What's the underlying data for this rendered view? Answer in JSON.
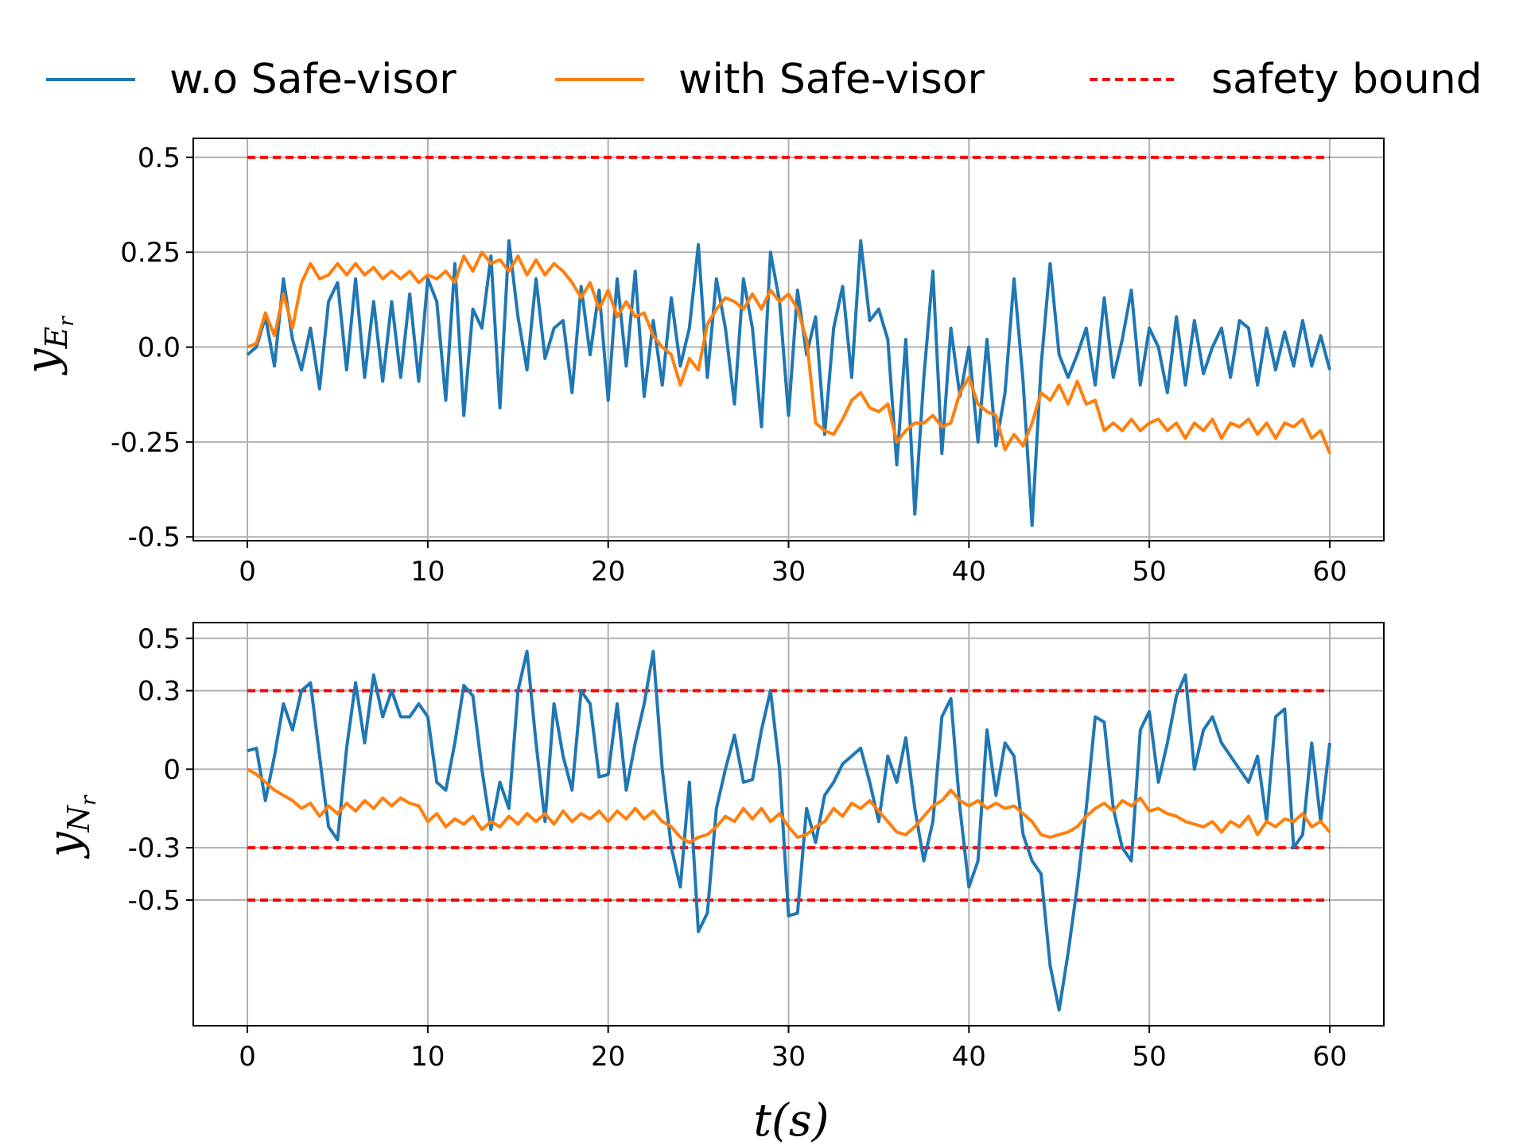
{
  "colors": {
    "series_without": "#1f77b4",
    "series_with": "#ff7f0e",
    "safety_bound": "#ff0000",
    "grid": "#b0b0b0"
  },
  "legend": {
    "items": [
      {
        "label": "w.o Safe-visor",
        "style": "solid",
        "color": "#1f77b4"
      },
      {
        "label": "with Safe-visor",
        "style": "solid",
        "color": "#ff7f0e"
      },
      {
        "label": "safety bound",
        "style": "dashed",
        "color": "#ff0000"
      }
    ],
    "placement": "top-center"
  },
  "chart_data": [
    {
      "type": "line",
      "id": "top",
      "ylabel_main": "y",
      "ylabel_sub": "E",
      "ylabel_subsub": "r",
      "xlim": [
        -3,
        63
      ],
      "ylim": [
        -0.51,
        0.55
      ],
      "xticks": [
        0,
        10,
        20,
        30,
        40,
        50,
        60
      ],
      "xtick_labels": [
        "0",
        "10",
        "20",
        "30",
        "40",
        "50",
        "60"
      ],
      "yticks": [
        0.5,
        0.25,
        0.0,
        -0.25,
        -0.5
      ],
      "ytick_labels": [
        "0.5",
        "0.25",
        "0.0",
        "-0.25",
        "-0.5"
      ],
      "grid": true,
      "bounds": [
        0.5
      ],
      "series": [
        {
          "name": "w.o Safe-visor",
          "x": [
            0,
            0.5,
            1,
            1.5,
            2,
            2.5,
            3,
            3.5,
            4,
            4.5,
            5,
            5.5,
            6,
            6.5,
            7,
            7.5,
            8,
            8.5,
            9,
            9.5,
            10,
            10.5,
            11,
            11.5,
            12,
            12.5,
            13,
            13.5,
            14,
            14.5,
            15,
            15.5,
            16,
            16.5,
            17,
            17.5,
            18,
            18.5,
            19,
            19.5,
            20,
            20.5,
            21,
            21.5,
            22,
            22.5,
            23,
            23.5,
            24,
            24.5,
            25,
            25.5,
            26,
            26.5,
            27,
            27.5,
            28,
            28.5,
            29,
            29.5,
            30,
            30.5,
            31,
            31.5,
            32,
            32.5,
            33,
            33.5,
            34,
            34.5,
            35,
            35.5,
            36,
            36.5,
            37,
            37.5,
            38,
            38.5,
            39,
            39.5,
            40,
            40.5,
            41,
            41.5,
            42,
            42.5,
            43,
            43.5,
            44,
            44.5,
            45,
            45.5,
            46,
            46.5,
            47,
            47.5,
            48,
            48.5,
            49,
            49.5,
            50,
            50.5,
            51,
            51.5,
            52,
            52.5,
            53,
            53.5,
            54,
            54.5,
            55,
            55.5,
            56,
            56.5,
            57,
            57.5,
            58,
            58.5,
            59,
            59.5,
            60
          ],
          "values": [
            -0.02,
            0.0,
            0.08,
            -0.05,
            0.18,
            0.02,
            -0.06,
            0.05,
            -0.11,
            0.12,
            0.17,
            -0.06,
            0.18,
            -0.08,
            0.12,
            -0.09,
            0.12,
            -0.08,
            0.14,
            -0.09,
            0.18,
            0.12,
            -0.14,
            0.22,
            -0.18,
            0.1,
            0.05,
            0.24,
            -0.16,
            0.28,
            0.08,
            -0.06,
            0.18,
            -0.03,
            0.05,
            0.07,
            -0.12,
            0.16,
            -0.02,
            0.15,
            -0.14,
            0.18,
            -0.05,
            0.2,
            -0.13,
            0.07,
            -0.1,
            0.13,
            -0.05,
            0.05,
            0.27,
            -0.08,
            0.18,
            0.05,
            -0.15,
            0.18,
            0.05,
            -0.21,
            0.25,
            0.12,
            -0.18,
            0.15,
            -0.02,
            0.08,
            -0.23,
            0.05,
            0.16,
            -0.08,
            0.28,
            0.07,
            0.1,
            0.02,
            -0.31,
            0.02,
            -0.44,
            -0.08,
            0.2,
            -0.28,
            0.05,
            -0.13,
            0.0,
            -0.25,
            0.02,
            -0.26,
            -0.12,
            0.18,
            -0.09,
            -0.47,
            -0.05,
            0.22,
            -0.02,
            -0.08,
            -0.02,
            0.05,
            -0.1,
            0.13,
            -0.08,
            0.02,
            0.15,
            -0.1,
            0.05,
            0.0,
            -0.12,
            0.08,
            -0.1,
            0.07,
            -0.07,
            0.0,
            0.05,
            -0.08,
            0.07,
            0.05,
            -0.1,
            0.05,
            -0.06,
            0.04,
            -0.05,
            0.07,
            -0.05,
            0.03,
            -0.06
          ],
          "color": "#1f77b4"
        },
        {
          "name": "with Safe-visor",
          "x": [
            0,
            0.5,
            1,
            1.5,
            2,
            2.5,
            3,
            3.5,
            4,
            4.5,
            5,
            5.5,
            6,
            6.5,
            7,
            7.5,
            8,
            8.5,
            9,
            9.5,
            10,
            10.5,
            11,
            11.5,
            12,
            12.5,
            13,
            13.5,
            14,
            14.5,
            15,
            15.5,
            16,
            16.5,
            17,
            17.5,
            18,
            18.5,
            19,
            19.5,
            20,
            20.5,
            21,
            21.5,
            22,
            22.5,
            23,
            23.5,
            24,
            24.5,
            25,
            25.5,
            26,
            26.5,
            27,
            27.5,
            28,
            28.5,
            29,
            29.5,
            30,
            30.5,
            31,
            31.5,
            32,
            32.5,
            33,
            33.5,
            34,
            34.5,
            35,
            35.5,
            36,
            36.5,
            37,
            37.5,
            38,
            38.5,
            39,
            39.5,
            40,
            40.5,
            41,
            41.5,
            42,
            42.5,
            43,
            43.5,
            44,
            44.5,
            45,
            45.5,
            46,
            46.5,
            47,
            47.5,
            48,
            48.5,
            49,
            49.5,
            50,
            50.5,
            51,
            51.5,
            52,
            52.5,
            53,
            53.5,
            54,
            54.5,
            55,
            55.5,
            56,
            56.5,
            57,
            57.5,
            58,
            58.5,
            59,
            59.5,
            60
          ],
          "values": [
            0.0,
            0.01,
            0.09,
            0.03,
            0.14,
            0.05,
            0.17,
            0.22,
            0.18,
            0.19,
            0.22,
            0.19,
            0.22,
            0.19,
            0.21,
            0.18,
            0.2,
            0.18,
            0.2,
            0.17,
            0.19,
            0.18,
            0.2,
            0.17,
            0.24,
            0.2,
            0.25,
            0.22,
            0.23,
            0.2,
            0.24,
            0.19,
            0.23,
            0.19,
            0.22,
            0.2,
            0.17,
            0.13,
            0.17,
            0.1,
            0.15,
            0.08,
            0.12,
            0.08,
            0.09,
            0.03,
            0.0,
            -0.02,
            -0.1,
            -0.03,
            -0.06,
            0.06,
            0.1,
            0.13,
            0.12,
            0.1,
            0.14,
            0.1,
            0.15,
            0.12,
            0.14,
            0.1,
            0.02,
            -0.2,
            -0.22,
            -0.23,
            -0.19,
            -0.14,
            -0.12,
            -0.16,
            -0.17,
            -0.15,
            -0.25,
            -0.22,
            -0.2,
            -0.2,
            -0.18,
            -0.21,
            -0.2,
            -0.12,
            -0.08,
            -0.15,
            -0.17,
            -0.18,
            -0.27,
            -0.23,
            -0.26,
            -0.2,
            -0.12,
            -0.14,
            -0.1,
            -0.15,
            -0.09,
            -0.15,
            -0.14,
            -0.22,
            -0.2,
            -0.22,
            -0.19,
            -0.22,
            -0.2,
            -0.19,
            -0.22,
            -0.2,
            -0.24,
            -0.2,
            -0.22,
            -0.19,
            -0.24,
            -0.2,
            -0.21,
            -0.19,
            -0.23,
            -0.2,
            -0.24,
            -0.2,
            -0.21,
            -0.19,
            -0.24,
            -0.22,
            -0.28
          ],
          "color": "#ff7f0e"
        }
      ]
    },
    {
      "type": "line",
      "id": "bottom",
      "ylabel_main": "y",
      "ylabel_sub": "N",
      "ylabel_subsub": "r",
      "xlabel": "t(s)",
      "xlim": [
        -3,
        63
      ],
      "ylim": [
        -0.98,
        0.56
      ],
      "xticks": [
        0,
        10,
        20,
        30,
        40,
        50,
        60
      ],
      "xtick_labels": [
        "0",
        "10",
        "20",
        "30",
        "40",
        "50",
        "60"
      ],
      "yticks": [
        0.5,
        0.3,
        0.0,
        -0.3,
        -0.5
      ],
      "ytick_labels": [
        "0.5",
        "0.3",
        "0",
        "-0.3",
        "-0.5"
      ],
      "grid": true,
      "bounds": [
        0.3,
        -0.3,
        -0.5
      ],
      "series": [
        {
          "name": "w.o Safe-visor",
          "x": [
            0,
            0.5,
            1,
            1.5,
            2,
            2.5,
            3,
            3.5,
            4,
            4.5,
            5,
            5.5,
            6,
            6.5,
            7,
            7.5,
            8,
            8.5,
            9,
            9.5,
            10,
            10.5,
            11,
            11.5,
            12,
            12.5,
            13,
            13.5,
            14,
            14.5,
            15,
            15.5,
            16,
            16.5,
            17,
            17.5,
            18,
            18.5,
            19,
            19.5,
            20,
            20.5,
            21,
            21.5,
            22,
            22.5,
            23,
            23.5,
            24,
            24.5,
            25,
            25.5,
            26,
            26.5,
            27,
            27.5,
            28,
            28.5,
            29,
            29.5,
            30,
            30.5,
            31,
            31.5,
            32,
            32.5,
            33,
            33.5,
            34,
            34.5,
            35,
            35.5,
            36,
            36.5,
            37,
            37.5,
            38,
            38.5,
            39,
            39.5,
            40,
            40.5,
            41,
            41.5,
            42,
            42.5,
            43,
            43.5,
            44,
            44.5,
            45,
            45.5,
            46,
            46.5,
            47,
            47.5,
            48,
            48.5,
            49,
            49.5,
            50,
            50.5,
            51,
            51.5,
            52,
            52.5,
            53,
            53.5,
            54,
            54.5,
            55,
            55.5,
            56,
            56.5,
            57,
            57.5,
            58,
            58.5,
            59,
            59.5,
            60
          ],
          "values": [
            0.07,
            0.08,
            -0.12,
            0.05,
            0.25,
            0.15,
            0.3,
            0.33,
            0.05,
            -0.22,
            -0.27,
            0.08,
            0.33,
            0.1,
            0.36,
            0.2,
            0.3,
            0.2,
            0.2,
            0.25,
            0.2,
            -0.05,
            -0.08,
            0.1,
            0.32,
            0.28,
            0.0,
            -0.23,
            -0.05,
            -0.15,
            0.3,
            0.45,
            0.1,
            -0.2,
            0.25,
            0.05,
            -0.08,
            0.3,
            0.25,
            -0.03,
            -0.02,
            0.25,
            -0.08,
            0.1,
            0.25,
            0.45,
            0.0,
            -0.3,
            -0.45,
            -0.05,
            -0.62,
            -0.55,
            -0.15,
            0.0,
            0.13,
            -0.05,
            -0.04,
            0.15,
            0.3,
            0.0,
            -0.56,
            -0.55,
            -0.15,
            -0.28,
            -0.1,
            -0.05,
            0.02,
            0.05,
            0.08,
            -0.05,
            -0.2,
            0.05,
            -0.05,
            0.12,
            -0.15,
            -0.35,
            -0.2,
            0.2,
            0.27,
            -0.15,
            -0.45,
            -0.35,
            0.15,
            -0.1,
            0.1,
            0.05,
            -0.25,
            -0.35,
            -0.4,
            -0.75,
            -0.92,
            -0.7,
            -0.45,
            -0.15,
            0.2,
            0.18,
            -0.15,
            -0.3,
            -0.35,
            0.15,
            0.22,
            -0.05,
            0.1,
            0.28,
            0.36,
            0.0,
            0.15,
            0.2,
            0.1,
            0.05,
            0.0,
            -0.05,
            0.05,
            -0.2,
            0.2,
            0.23,
            -0.3,
            -0.25,
            0.1,
            -0.2,
            0.1
          ],
          "color": "#1f77b4"
        },
        {
          "name": "with Safe-visor",
          "x": [
            0,
            0.5,
            1,
            1.5,
            2,
            2.5,
            3,
            3.5,
            4,
            4.5,
            5,
            5.5,
            6,
            6.5,
            7,
            7.5,
            8,
            8.5,
            9,
            9.5,
            10,
            10.5,
            11,
            11.5,
            12,
            12.5,
            13,
            13.5,
            14,
            14.5,
            15,
            15.5,
            16,
            16.5,
            17,
            17.5,
            18,
            18.5,
            19,
            19.5,
            20,
            20.5,
            21,
            21.5,
            22,
            22.5,
            23,
            23.5,
            24,
            24.5,
            25,
            25.5,
            26,
            26.5,
            27,
            27.5,
            28,
            28.5,
            29,
            29.5,
            30,
            30.5,
            31,
            31.5,
            32,
            32.5,
            33,
            33.5,
            34,
            34.5,
            35,
            35.5,
            36,
            36.5,
            37,
            37.5,
            38,
            38.5,
            39,
            39.5,
            40,
            40.5,
            41,
            41.5,
            42,
            42.5,
            43,
            43.5,
            44,
            44.5,
            45,
            45.5,
            46,
            46.5,
            47,
            47.5,
            48,
            48.5,
            49,
            49.5,
            50,
            50.5,
            51,
            51.5,
            52,
            52.5,
            53,
            53.5,
            54,
            54.5,
            55,
            55.5,
            56,
            56.5,
            57,
            57.5,
            58,
            58.5,
            59,
            59.5,
            60
          ],
          "values": [
            0.0,
            -0.02,
            -0.05,
            -0.08,
            -0.1,
            -0.12,
            -0.15,
            -0.13,
            -0.18,
            -0.14,
            -0.17,
            -0.13,
            -0.16,
            -0.12,
            -0.15,
            -0.11,
            -0.14,
            -0.11,
            -0.13,
            -0.14,
            -0.2,
            -0.17,
            -0.22,
            -0.19,
            -0.21,
            -0.18,
            -0.23,
            -0.2,
            -0.22,
            -0.18,
            -0.21,
            -0.17,
            -0.2,
            -0.17,
            -0.21,
            -0.16,
            -0.2,
            -0.17,
            -0.19,
            -0.16,
            -0.2,
            -0.16,
            -0.19,
            -0.15,
            -0.19,
            -0.16,
            -0.2,
            -0.22,
            -0.26,
            -0.28,
            -0.26,
            -0.25,
            -0.22,
            -0.18,
            -0.2,
            -0.15,
            -0.19,
            -0.15,
            -0.2,
            -0.17,
            -0.22,
            -0.26,
            -0.25,
            -0.22,
            -0.2,
            -0.15,
            -0.18,
            -0.13,
            -0.15,
            -0.12,
            -0.16,
            -0.2,
            -0.24,
            -0.25,
            -0.22,
            -0.18,
            -0.14,
            -0.12,
            -0.08,
            -0.12,
            -0.14,
            -0.12,
            -0.15,
            -0.13,
            -0.15,
            -0.14,
            -0.17,
            -0.2,
            -0.25,
            -0.26,
            -0.25,
            -0.24,
            -0.22,
            -0.18,
            -0.15,
            -0.13,
            -0.16,
            -0.12,
            -0.14,
            -0.11,
            -0.16,
            -0.15,
            -0.17,
            -0.18,
            -0.2,
            -0.21,
            -0.22,
            -0.2,
            -0.24,
            -0.2,
            -0.22,
            -0.18,
            -0.25,
            -0.2,
            -0.22,
            -0.19,
            -0.2,
            -0.17,
            -0.22,
            -0.2,
            -0.24
          ],
          "color": "#ff7f0e"
        }
      ]
    }
  ]
}
